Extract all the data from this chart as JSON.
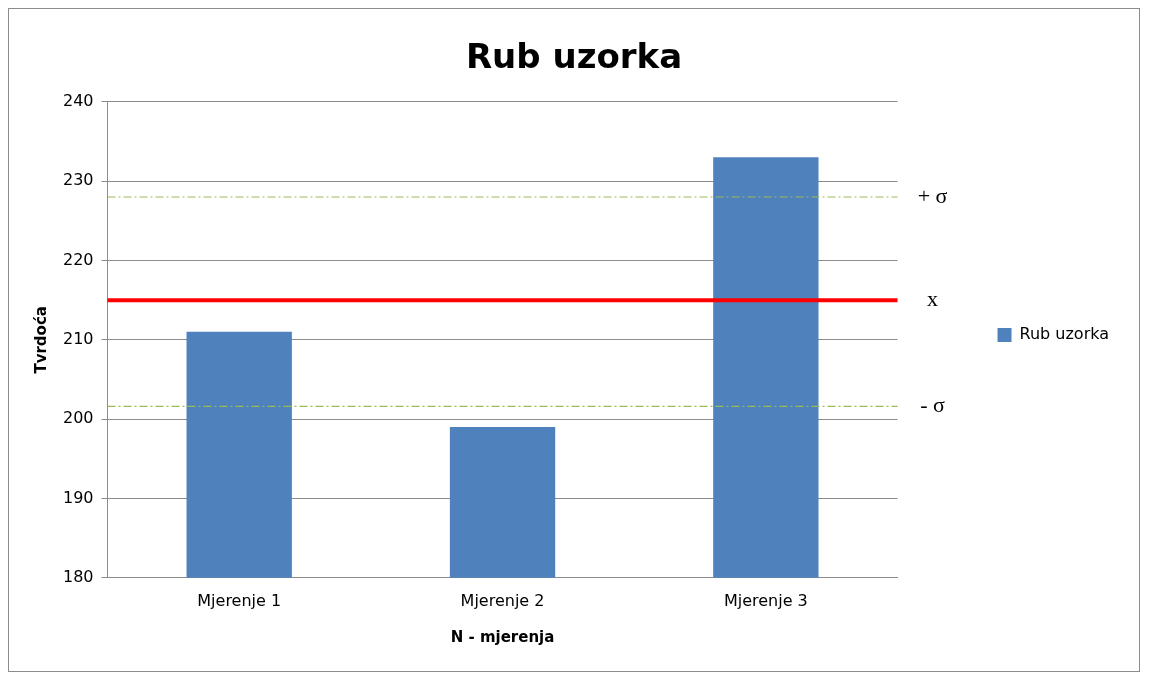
{
  "chart_data": {
    "type": "bar",
    "title": "Rub uzorka",
    "xlabel": "N - mjerenja",
    "ylabel": "Tvrdoća",
    "categories": [
      "Mjerenje 1",
      "Mjerenje 2",
      "Mjerenje 3"
    ],
    "series": [
      {
        "name": "Rub uzorka",
        "color": "#4f81bd",
        "values": [
          211,
          199,
          233
        ]
      }
    ],
    "ylim": [
      180,
      240
    ],
    "yticks": [
      180,
      190,
      200,
      210,
      220,
      230,
      240
    ],
    "grid": "y",
    "legend": "right",
    "ref_lines": [
      {
        "axis": "y",
        "value": 228,
        "label": "+ σ",
        "color": "#9bbb59",
        "line_style": "dashed"
      },
      {
        "axis": "y",
        "value": 215,
        "label": "x",
        "color": "#ff0000",
        "line_style": "solid"
      },
      {
        "axis": "y",
        "value": 201.6,
        "label": "- σ",
        "color": "#9bbb59",
        "line_style": "dashed"
      }
    ]
  }
}
